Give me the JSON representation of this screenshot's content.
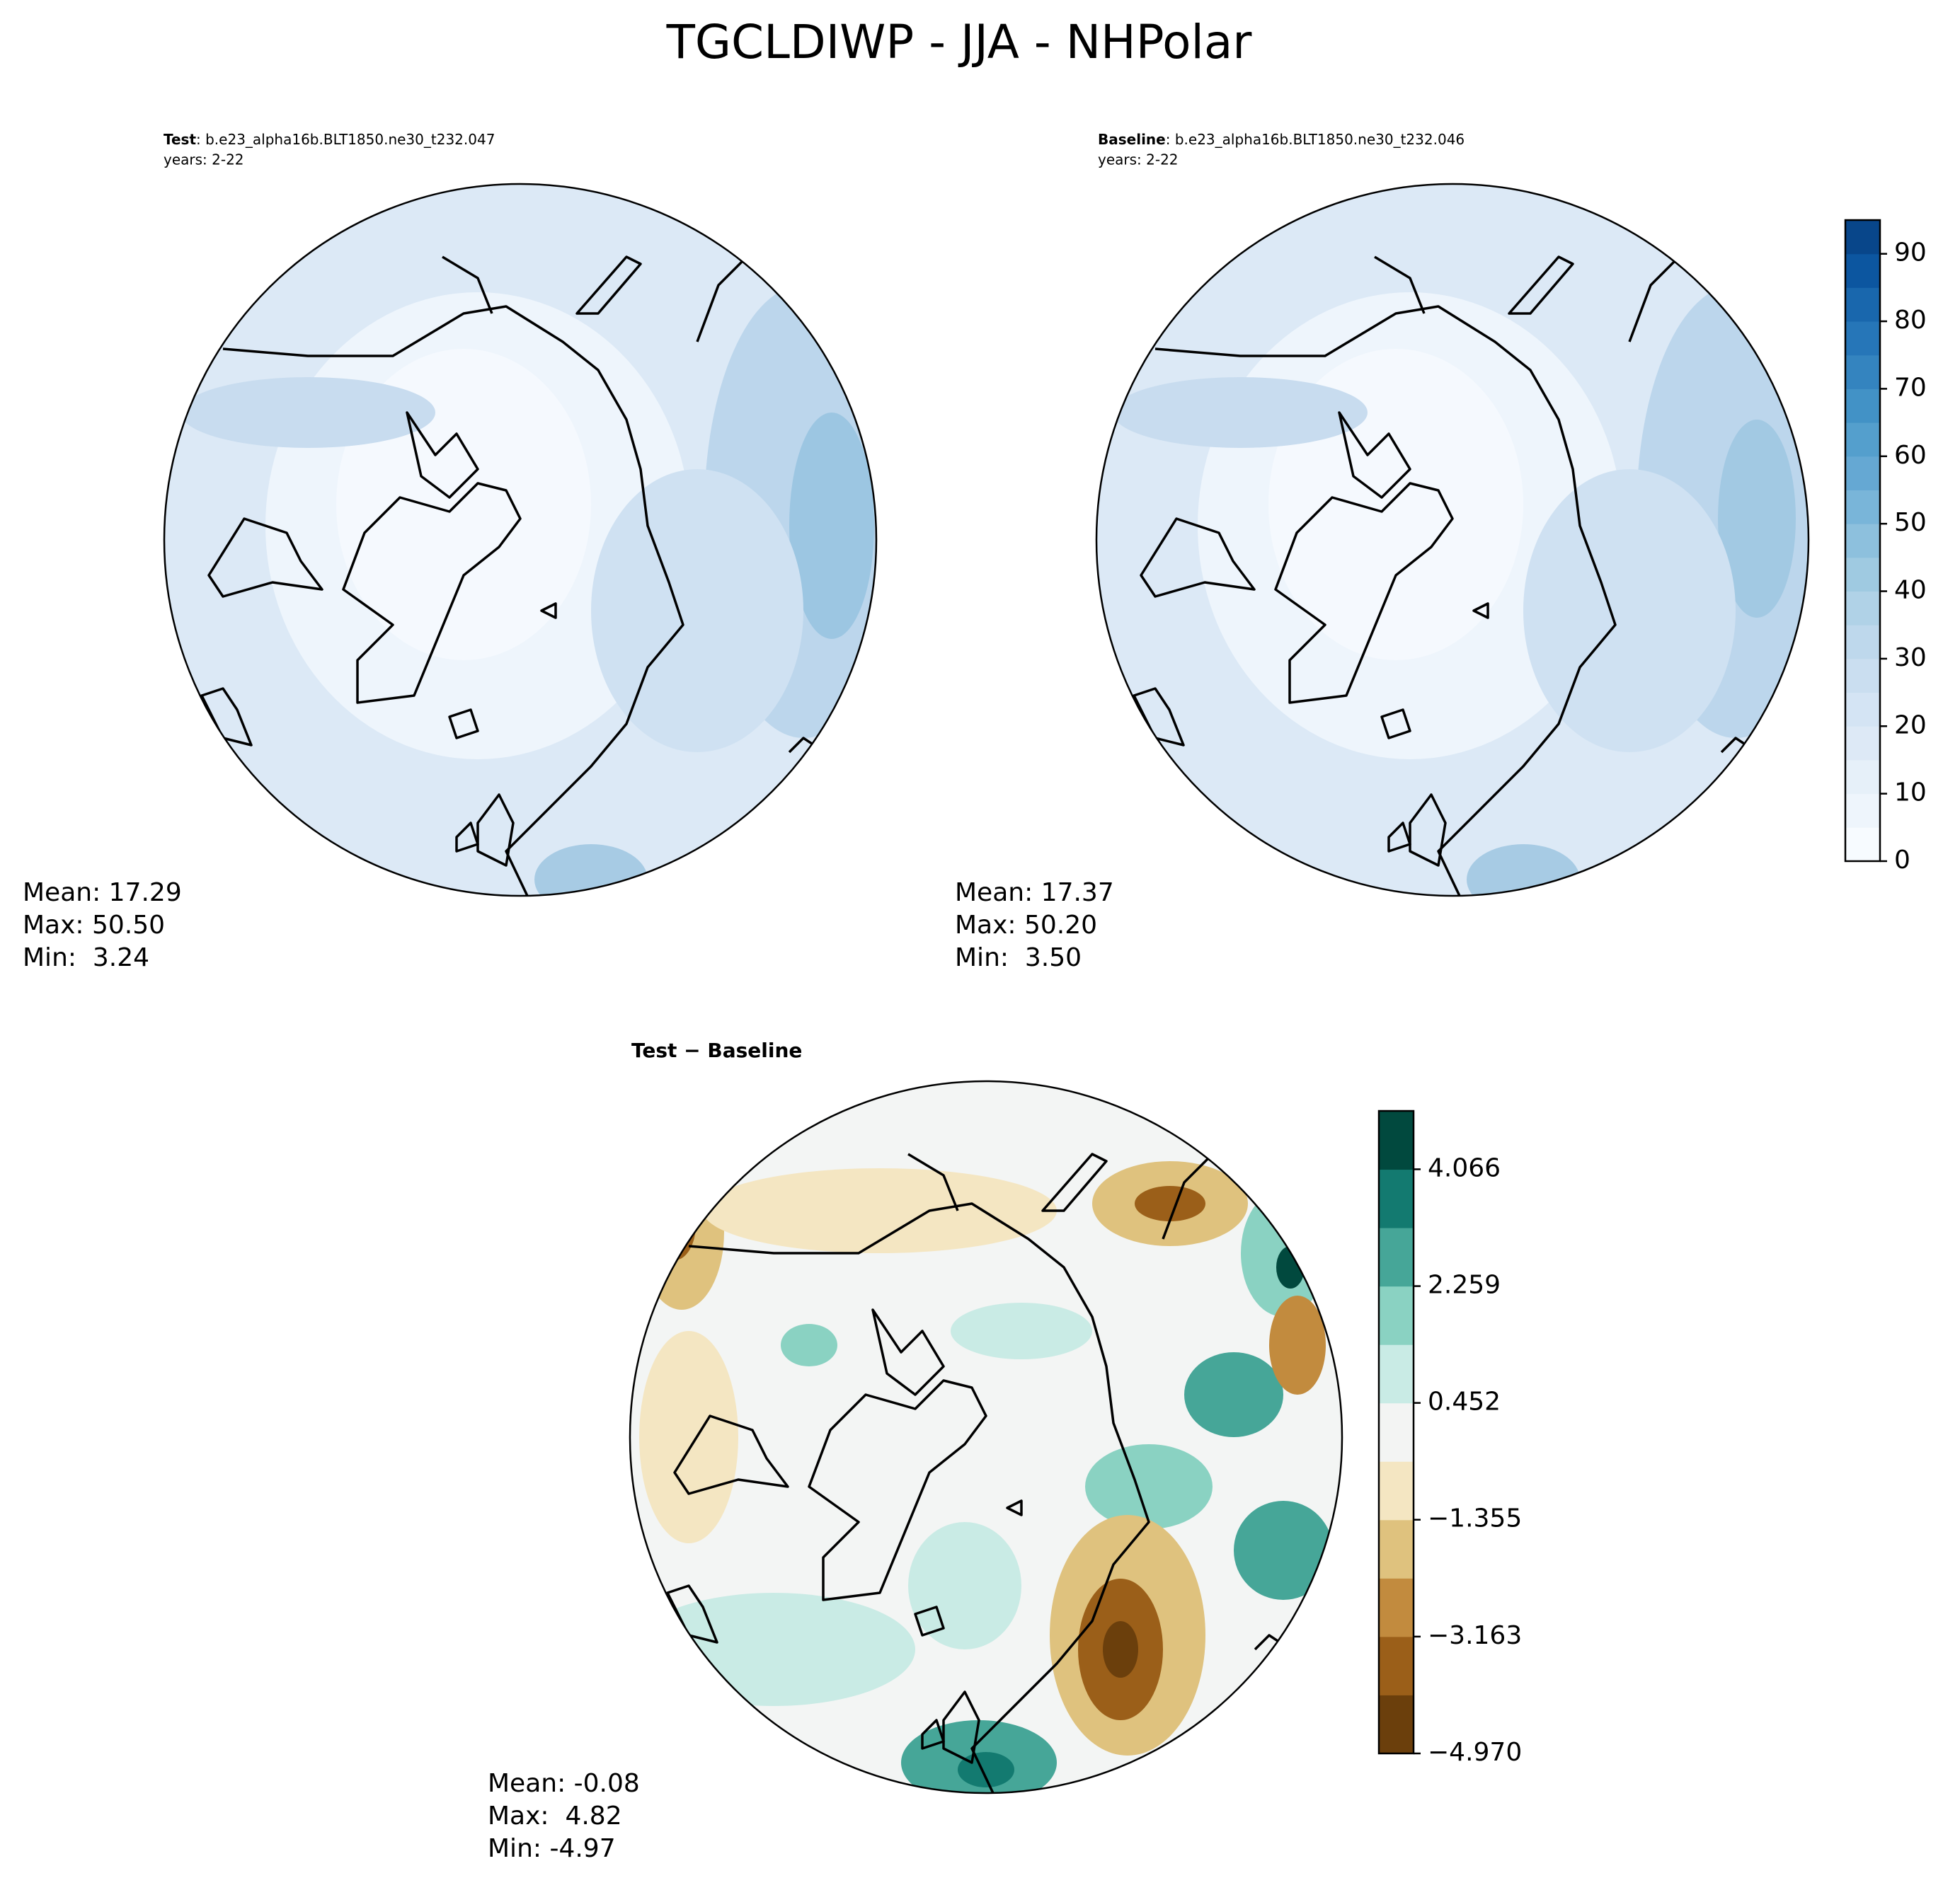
{
  "title": "TGCLDIWP - JJA - NHPolar",
  "panels": [
    {
      "label": "Test",
      "case": ": b.e23_alpha16b.BLT1850.ne30_t232.047",
      "years": "years: 2-22",
      "stats": [
        "Mean: 17.29",
        "Max: 50.50",
        "Min:  3.24"
      ]
    },
    {
      "label": "Baseline",
      "case": ": b.e23_alpha16b.BLT1850.ne30_t232.046",
      "years": "years: 2-22",
      "stats": [
        "Mean: 17.37",
        "Max: 50.20",
        "Min:  3.50"
      ]
    },
    {
      "label": "Test − Baseline",
      "stats": [
        "Mean: -0.08",
        "Max:  4.82",
        "Min: -4.97"
      ]
    }
  ],
  "colorbars": [
    {
      "lim": [
        0,
        95
      ],
      "ticks": [
        0,
        10,
        20,
        30,
        40,
        50,
        60,
        70,
        80,
        90
      ],
      "colors": [
        "#f7fbff",
        "#eef5fc",
        "#e6f0f9",
        "#dde9f6",
        "#d4e4f4",
        "#cadef0",
        "#bed8ec",
        "#b0d2e7",
        "#9fcae1",
        "#8dc0dd",
        "#79b5d9",
        "#65a8d3",
        "#549fcd",
        "#4292c6",
        "#3484bf",
        "#2676b8",
        "#1967ad",
        "#0c56a0",
        "#08468a"
      ]
    },
    {
      "lim": [
        -4.97,
        4.9685
      ],
      "ticks": [
        {
          "value": -4.97,
          "label": "−4.970"
        },
        {
          "value": -3.163,
          "label": "−3.163"
        },
        {
          "value": -1.355,
          "label": "−1.355"
        },
        0.452,
        2.259,
        4.066
      ],
      "colors": [
        "#6b3f0c",
        "#9b5f19",
        "#c28b3e",
        "#dfc27e",
        "#f4e6c2",
        "#f3f4f3",
        "#c9ebe5",
        "#8ad2c2",
        "#46a698",
        "#137a70",
        "#01493e"
      ]
    }
  ]
}
